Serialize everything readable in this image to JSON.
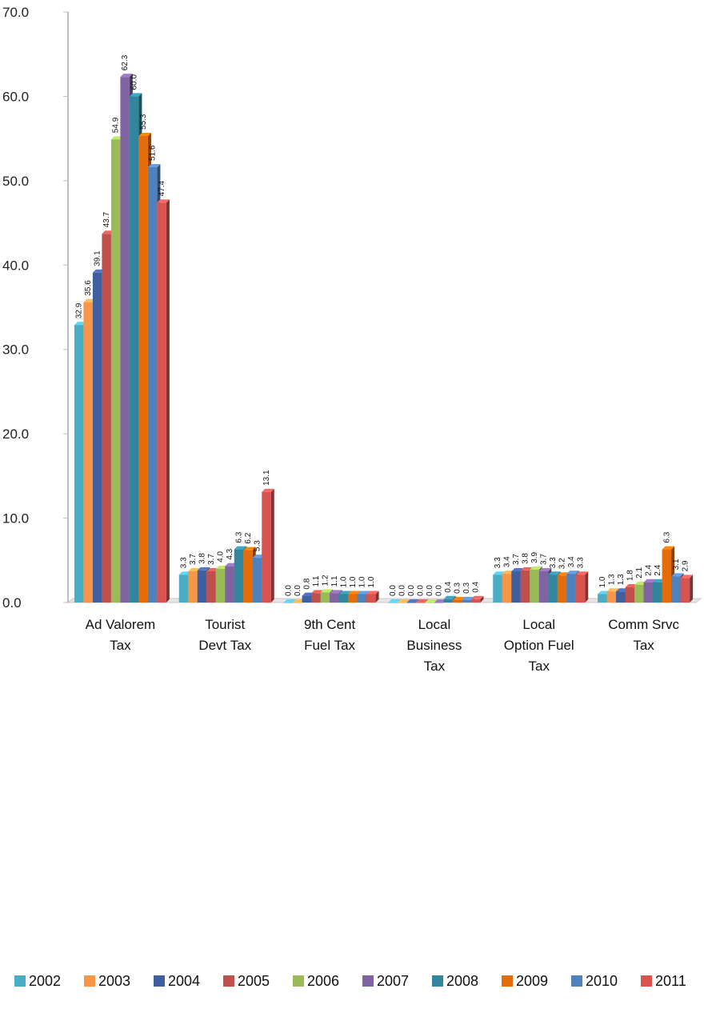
{
  "chart_data": {
    "type": "bar",
    "title": "",
    "xlabel": "",
    "ylabel": "",
    "ylim": [
      0,
      70
    ],
    "yticks": [
      "0.0",
      "10.0",
      "20.0",
      "30.0",
      "40.0",
      "50.0",
      "60.0",
      "70.0"
    ],
    "grid": false,
    "legend_position": "bottom",
    "categories": [
      [
        "Ad Valorem",
        "Tax"
      ],
      [
        "Tourist",
        "Devt Tax"
      ],
      [
        "9th Cent",
        "Fuel Tax"
      ],
      [
        "Local",
        "Business",
        "Tax"
      ],
      [
        "Local",
        "Option Fuel",
        "Tax"
      ],
      [
        "Comm Srvc",
        "Tax"
      ]
    ],
    "series": [
      {
        "name": "2002",
        "color": "#4BACC6",
        "values": [
          32.9,
          3.3,
          0.0,
          0.0,
          3.3,
          1.0
        ]
      },
      {
        "name": "2003",
        "color": "#F79646",
        "values": [
          35.6,
          3.7,
          0.0,
          0.0,
          3.4,
          1.3
        ]
      },
      {
        "name": "2004",
        "color": "#3F5F9F",
        "values": [
          39.1,
          3.8,
          0.8,
          0.0,
          3.7,
          1.3
        ]
      },
      {
        "name": "2005",
        "color": "#C0504D",
        "values": [
          43.7,
          3.7,
          1.1,
          0.0,
          3.8,
          1.8
        ]
      },
      {
        "name": "2006",
        "color": "#9BBB59",
        "values": [
          54.9,
          4.0,
          1.2,
          0.0,
          3.9,
          2.1
        ]
      },
      {
        "name": "2007",
        "color": "#8064A2",
        "values": [
          62.3,
          4.3,
          1.1,
          0.0,
          3.7,
          2.4
        ]
      },
      {
        "name": "2008",
        "color": "#31859C",
        "values": [
          60.0,
          6.3,
          1.0,
          0.4,
          3.3,
          2.4
        ]
      },
      {
        "name": "2009",
        "color": "#E46C0A",
        "values": [
          55.3,
          6.2,
          1.0,
          0.3,
          3.2,
          6.3
        ]
      },
      {
        "name": "2010",
        "color": "#4F81BD",
        "values": [
          51.6,
          5.3,
          1.0,
          0.3,
          3.4,
          3.1
        ]
      },
      {
        "name": "2011",
        "color": "#D9534F",
        "values": [
          47.4,
          13.1,
          1.0,
          0.4,
          3.3,
          2.9
        ]
      }
    ]
  }
}
